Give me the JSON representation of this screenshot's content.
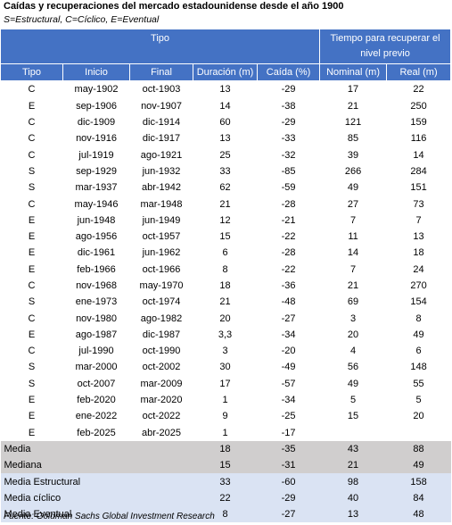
{
  "header": {
    "title": "Caídas y recuperaciones del mercado estadounidense desde el año 1900",
    "subtitle": "S=Estructural, C=Cíclico, E=Eventual"
  },
  "table": {
    "group_headers": [
      "Tipo",
      "Tiempo para recuperar el nivel previo"
    ],
    "columns": [
      "Tipo",
      "Inicio",
      "Final",
      "Duración (m)",
      "Caída (%)",
      "Nominal (m)",
      "Real (m)"
    ],
    "rows": [
      [
        "C",
        "may-1902",
        "oct-1903",
        13,
        -29,
        17,
        22
      ],
      [
        "E",
        "sep-1906",
        "nov-1907",
        14,
        -38,
        21,
        250
      ],
      [
        "C",
        "dic-1909",
        "dic-1914",
        60,
        -29,
        121,
        159
      ],
      [
        "C",
        "nov-1916",
        "dic-1917",
        13,
        -33,
        85,
        116
      ],
      [
        "C",
        "jul-1919",
        "ago-1921",
        25,
        -32,
        39,
        14
      ],
      [
        "S",
        "sep-1929",
        "jun-1932",
        33,
        -85,
        266,
        284
      ],
      [
        "S",
        "mar-1937",
        "abr-1942",
        62,
        -59,
        49,
        151
      ],
      [
        "C",
        "may-1946",
        "mar-1948",
        21,
        -28,
        27,
        73
      ],
      [
        "E",
        "jun-1948",
        "jun-1949",
        12,
        -21,
        7,
        7
      ],
      [
        "E",
        "ago-1956",
        "oct-1957",
        15,
        -22,
        11,
        13
      ],
      [
        "E",
        "dic-1961",
        "jun-1962",
        6,
        -28,
        14,
        18
      ],
      [
        "E",
        "feb-1966",
        "oct-1966",
        8,
        -22,
        7,
        24
      ],
      [
        "C",
        "nov-1968",
        "may-1970",
        18,
        -36,
        21,
        270
      ],
      [
        "S",
        "ene-1973",
        "oct-1974",
        21,
        -48,
        69,
        154
      ],
      [
        "C",
        "nov-1980",
        "ago-1982",
        20,
        -27,
        3,
        8
      ],
      [
        "E",
        "ago-1987",
        "dic-1987",
        "3,3",
        -34,
        20,
        49
      ],
      [
        "C",
        "jul-1990",
        "oct-1990",
        3,
        -20,
        4,
        6
      ],
      [
        "S",
        "mar-2000",
        "oct-2002",
        30,
        -49,
        56,
        148
      ],
      [
        "S",
        "oct-2007",
        "mar-2009",
        17,
        -57,
        49,
        55
      ],
      [
        "E",
        "feb-2020",
        "mar-2020",
        1,
        -34,
        5,
        5
      ],
      [
        "E",
        "ene-2022",
        "oct-2022",
        9,
        -25,
        15,
        20
      ],
      [
        "E",
        "feb-2025",
        "abr-2025",
        1,
        -17,
        null,
        null
      ]
    ],
    "summary": [
      {
        "label": "Media",
        "values": [
          18,
          -35,
          43,
          88
        ]
      },
      {
        "label": "Mediana",
        "values": [
          15,
          -31,
          21,
          49
        ]
      },
      {
        "label": "Media Estructural",
        "values": [
          33,
          -60,
          98,
          158
        ]
      },
      {
        "label": "Media cíclico",
        "values": [
          22,
          -29,
          40,
          84
        ]
      },
      {
        "label": "Media Eventual",
        "values": [
          8,
          -27,
          13,
          48
        ]
      }
    ]
  },
  "footer": {
    "source": "Fuente: Goldman Sachs Global Investment Research"
  }
}
